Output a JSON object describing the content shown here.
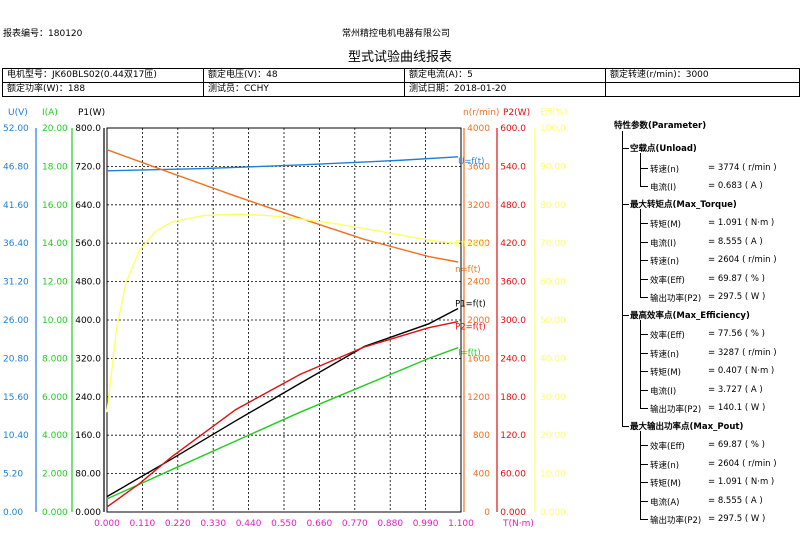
{
  "header": {
    "report_no_label": "报表编号：",
    "report_no": "180120",
    "company": "常州精控电机电器有限公司",
    "title": "型式试验曲线报表"
  },
  "info": {
    "model": "电机型号：JK60BLS02(0.44双17匝)",
    "voltage": "额定电压(V)：48",
    "current": "额定电流(A)：5",
    "speed": "额定转速(r/min)：3000",
    "power": "额定功率(W)：188",
    "tester": "测试员：CCHY",
    "date": "测试日期：2018-01-20"
  },
  "params": {
    "title": "特性参数(Parameter)",
    "groups": [
      {
        "title": "空载点(Unload)",
        "rows": [
          {
            "label": "转速(n)",
            "value": "=  3774 ( r/min )"
          },
          {
            "label": "电流(I)",
            "value": "=  0.683 ( A )"
          }
        ]
      },
      {
        "title": "最大转矩点(Max_Torque)",
        "rows": [
          {
            "label": "转矩(M)",
            "value": "=  1.091 ( N·m )"
          },
          {
            "label": "电流(I)",
            "value": "=  8.555 ( A )"
          },
          {
            "label": "转速(n)",
            "value": "=  2604 ( r/min )"
          },
          {
            "label": "效率(Eff)",
            "value": "=  69.87 ( % )"
          },
          {
            "label": "输出功率(P2)",
            "value": "=  297.5 ( W )"
          }
        ]
      },
      {
        "title": "最高效率点(Max_Efficiency)",
        "rows": [
          {
            "label": "效率(Eff)",
            "value": "=  77.56 ( % )"
          },
          {
            "label": "转速(n)",
            "value": "=  3287 ( r/min )"
          },
          {
            "label": "转矩(M)",
            "value": "=  0.407 ( N·m )"
          },
          {
            "label": "电流(I)",
            "value": "=  3.727 ( A )"
          },
          {
            "label": "输出功率(P2)",
            "value": "=  140.1 ( W )"
          }
        ]
      },
      {
        "title": "最大输出功率点(Max_Pout)",
        "rows": [
          {
            "label": "效率(Eff)",
            "value": "=  69.87 ( % )"
          },
          {
            "label": "转速(n)",
            "value": "=  2604 ( r/min )"
          },
          {
            "label": "转矩(M)",
            "value": "=  1.091 ( N·m )"
          },
          {
            "label": "电流(A)",
            "value": "=  8.555 ( A )"
          },
          {
            "label": "输出功率(P2)",
            "value": "=  297.5 ( W )"
          }
        ]
      }
    ]
  },
  "chart_data": {
    "type": "line",
    "xlabel": "T(N·m)",
    "x_ticks": [
      "0.000",
      "0.110",
      "0.220",
      "0.330",
      "0.440",
      "0.550",
      "0.660",
      "0.770",
      "0.880",
      "0.990",
      "1.100"
    ],
    "xlim": [
      0,
      1.1
    ],
    "grid": true,
    "axes": [
      {
        "id": "U",
        "label": "U(V)",
        "color": "#1e7fd4",
        "min": 0,
        "max": 52,
        "ticks": [
          "0.00",
          "5.20",
          "10.40",
          "15.60",
          "20.80",
          "26.00",
          "31.20",
          "36.40",
          "41.60",
          "46.80",
          "52.00"
        ]
      },
      {
        "id": "I",
        "label": "I(A)",
        "color": "#22cc22",
        "min": 0,
        "max": 20,
        "ticks": [
          "0.000",
          "2.000",
          "4.000",
          "6.000",
          "8.000",
          "10.00",
          "12.00",
          "14.00",
          "16.00",
          "18.00",
          "20.00"
        ]
      },
      {
        "id": "P1",
        "label": "P1(W)",
        "color": "#000000",
        "min": 0,
        "max": 800,
        "ticks": [
          "0.000",
          "80.00",
          "160.0",
          "240.0",
          "320.0",
          "400.0",
          "480.0",
          "560.0",
          "640.0",
          "720.0",
          "800.0"
        ]
      },
      {
        "id": "n",
        "label": "n(r/min)",
        "color": "#f07020",
        "min": 0,
        "max": 4000,
        "ticks": [
          "0",
          "400",
          "800",
          "1200",
          "1600",
          "2000",
          "2400",
          "2800",
          "3200",
          "3600",
          "4000"
        ]
      },
      {
        "id": "P2",
        "label": "P2(W)",
        "color": "#e01010",
        "min": 0,
        "max": 600,
        "ticks": [
          "0.000",
          "60.00",
          "120.0",
          "180.0",
          "240.0",
          "300.0",
          "360.0",
          "420.0",
          "480.0",
          "540.0",
          "600.0"
        ]
      },
      {
        "id": "Eff",
        "label": "Eff(%)",
        "color": "#ffff66",
        "min": 0,
        "max": 100,
        "ticks": [
          "0.000",
          "10.00",
          "20.00",
          "30.00",
          "40.00",
          "50.00",
          "60.00",
          "70.00",
          "80.00",
          "90.00",
          "100.0"
        ]
      }
    ],
    "series": [
      {
        "name": "U=f(t)",
        "axis": "U",
        "color": "#1e7fd4",
        "x": [
          0,
          0.3,
          0.6,
          0.9,
          1.091
        ],
        "y": [
          46.2,
          46.5,
          47.0,
          47.6,
          48.1
        ]
      },
      {
        "name": "I=f(t)",
        "axis": "I",
        "color": "#22cc22",
        "x": [
          0,
          0.2,
          0.4,
          0.6,
          0.8,
          1.0,
          1.091
        ],
        "y": [
          0.68,
          2.2,
          3.7,
          5.2,
          6.6,
          8.0,
          8.555
        ]
      },
      {
        "name": "P1=f(t)",
        "axis": "P1",
        "color": "#000000",
        "x": [
          0,
          0.2,
          0.4,
          0.6,
          0.8,
          1.0,
          1.091
        ],
        "y": [
          32,
          110,
          190,
          268,
          345,
          392,
          424
        ]
      },
      {
        "name": "n=f(t)",
        "axis": "n",
        "color": "#f07020",
        "x": [
          0,
          0.2,
          0.4,
          0.6,
          0.8,
          1.0,
          1.091
        ],
        "y": [
          3774,
          3530,
          3290,
          3060,
          2840,
          2660,
          2604
        ]
      },
      {
        "name": "P2=f(t)",
        "axis": "P2",
        "color": "#e01010",
        "x": [
          0,
          0.1,
          0.2,
          0.4,
          0.6,
          0.8,
          1.0,
          1.091
        ],
        "y": [
          8,
          44,
          86,
          160,
          215,
          258,
          288,
          297.5
        ]
      },
      {
        "name": "Eff=f(t)",
        "axis": "Eff",
        "color": "#ffff66",
        "x": [
          0,
          0.03,
          0.06,
          0.1,
          0.15,
          0.2,
          0.3,
          0.407,
          0.5,
          0.6,
          0.7,
          0.8,
          0.9,
          1.0,
          1.091
        ],
        "y": [
          26,
          48,
          60,
          68,
          73,
          75.5,
          77.2,
          77.56,
          77.2,
          76.3,
          75.2,
          73.8,
          72.3,
          70.8,
          69.87
        ]
      }
    ]
  }
}
